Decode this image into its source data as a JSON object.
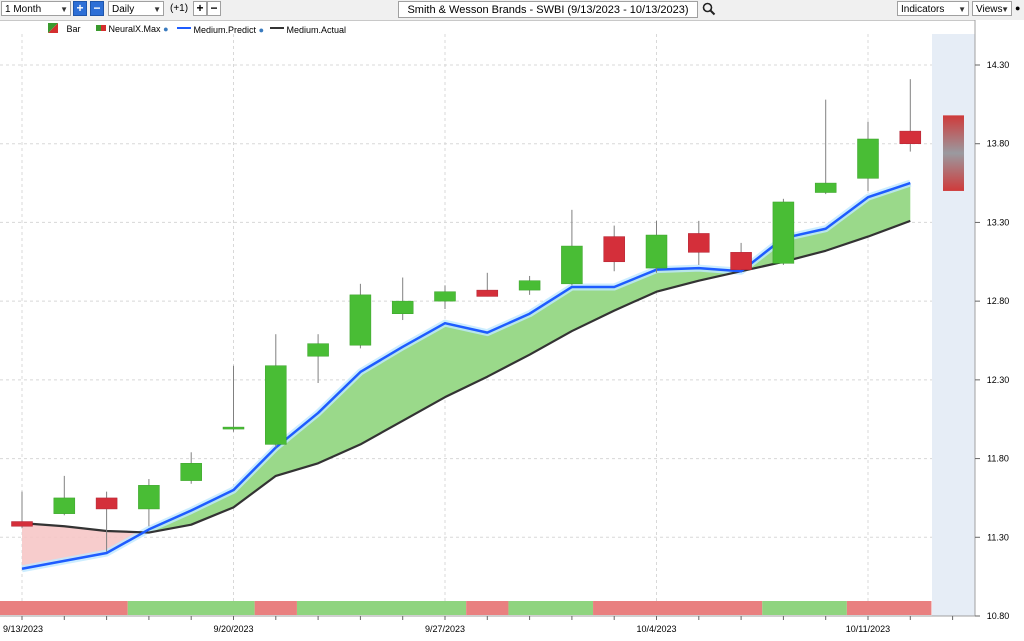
{
  "toolbar": {
    "period": "1 Month",
    "interval": "Daily",
    "offset": "(+1)",
    "title": "Smith & Wesson Brands - SWBI (9/13/2023 - 10/13/2023)",
    "indicators_label": "Indicators",
    "views_label": "Views",
    "icons": [
      "plus-icon",
      "minus-icon",
      "search-icon",
      "dropdown-arrow-icon"
    ]
  },
  "legend": [
    {
      "label": "Bar",
      "color": "#3a9a2e"
    },
    {
      "label": "NeuralX.Max",
      "color": "#d42f2f"
    },
    {
      "label": "Medium.Predict",
      "color": "#1e5cff"
    },
    {
      "label": "Medium.Actual",
      "color": "#333333"
    }
  ],
  "colors": {
    "up": "#49bd35",
    "down": "#d42f3a",
    "predict": "#1e5cff",
    "actual": "#333333",
    "fill_above": "#9ad98a",
    "fill_below": "#f6c7c7",
    "forecast_band": "#e6edf6",
    "bottom_green": "#8fd47f",
    "bottom_red": "#e98080"
  },
  "chart_data": {
    "type": "candlestick",
    "ylim": [
      10.8,
      14.4
    ],
    "yticks": [
      "14.30",
      "13.80",
      "13.30",
      "12.80",
      "12.30",
      "11.80",
      "11.30",
      "10.80"
    ],
    "xtick_labels": [
      "9/13/2023",
      "9/20/2023",
      "9/27/2023",
      "10/4/2023",
      "10/11/2023"
    ],
    "xtick_index": [
      0,
      5,
      10,
      15,
      20
    ],
    "dates": [
      "9/13",
      "9/14",
      "9/15",
      "9/18",
      "9/19",
      "9/20",
      "9/21",
      "9/22",
      "9/25",
      "9/26",
      "9/27",
      "9/28",
      "9/29",
      "10/2",
      "10/3",
      "10/4",
      "10/5",
      "10/6",
      "10/9",
      "10/10",
      "10/11",
      "10/12"
    ],
    "ohlc": [
      [
        11.4,
        11.59,
        11.36,
        11.37
      ],
      [
        11.45,
        11.69,
        11.44,
        11.55
      ],
      [
        11.55,
        11.59,
        11.21,
        11.48
      ],
      [
        11.48,
        11.67,
        11.37,
        11.63
      ],
      [
        11.66,
        11.84,
        11.64,
        11.77
      ],
      [
        11.99,
        12.39,
        11.97,
        12.0
      ],
      [
        11.89,
        12.59,
        11.87,
        12.39
      ],
      [
        12.45,
        12.59,
        12.28,
        12.53
      ],
      [
        12.52,
        12.91,
        12.5,
        12.84
      ],
      [
        12.72,
        12.95,
        12.68,
        12.8
      ],
      [
        12.8,
        12.9,
        12.75,
        12.86
      ],
      [
        12.87,
        12.98,
        12.83,
        12.83
      ],
      [
        12.87,
        12.96,
        12.84,
        12.93
      ],
      [
        12.91,
        13.38,
        12.9,
        13.15
      ],
      [
        13.21,
        13.28,
        12.99,
        13.05
      ],
      [
        13.01,
        13.31,
        12.98,
        13.22
      ],
      [
        13.23,
        13.31,
        13.03,
        13.11
      ],
      [
        13.11,
        13.17,
        13.0,
        13.0
      ],
      [
        13.04,
        13.45,
        13.03,
        13.43
      ],
      [
        13.49,
        14.08,
        13.48,
        13.55
      ],
      [
        13.58,
        13.94,
        13.5,
        13.83
      ],
      [
        13.88,
        14.21,
        13.75,
        13.8
      ]
    ],
    "series": [
      {
        "name": "Medium.Predict",
        "values": [
          11.1,
          11.15,
          11.2,
          11.35,
          11.47,
          11.6,
          11.87,
          12.09,
          12.35,
          12.51,
          12.66,
          12.6,
          12.72,
          12.89,
          12.89,
          13.0,
          13.01,
          12.99,
          13.2,
          13.26,
          13.46,
          13.55
        ]
      },
      {
        "name": "Medium.Actual",
        "values": [
          11.39,
          11.37,
          11.34,
          11.33,
          11.38,
          11.49,
          11.69,
          11.77,
          11.89,
          12.04,
          12.19,
          12.32,
          12.46,
          12.61,
          12.74,
          12.86,
          12.93,
          12.99,
          13.05,
          13.12,
          13.21,
          13.31
        ]
      }
    ],
    "forecast": {
      "high": 13.98,
      "low": 13.5
    },
    "bottom_strip": [
      {
        "from": 0,
        "to": 2,
        "state": "down"
      },
      {
        "from": 3,
        "to": 5,
        "state": "up"
      },
      {
        "from": 6,
        "to": 6,
        "state": "down"
      },
      {
        "from": 7,
        "to": 10,
        "state": "up"
      },
      {
        "from": 11,
        "to": 11,
        "state": "down"
      },
      {
        "from": 12,
        "to": 13,
        "state": "up"
      },
      {
        "from": 14,
        "to": 17,
        "state": "down"
      },
      {
        "from": 18,
        "to": 19,
        "state": "up"
      },
      {
        "from": 20,
        "to": 21,
        "state": "down"
      }
    ]
  }
}
